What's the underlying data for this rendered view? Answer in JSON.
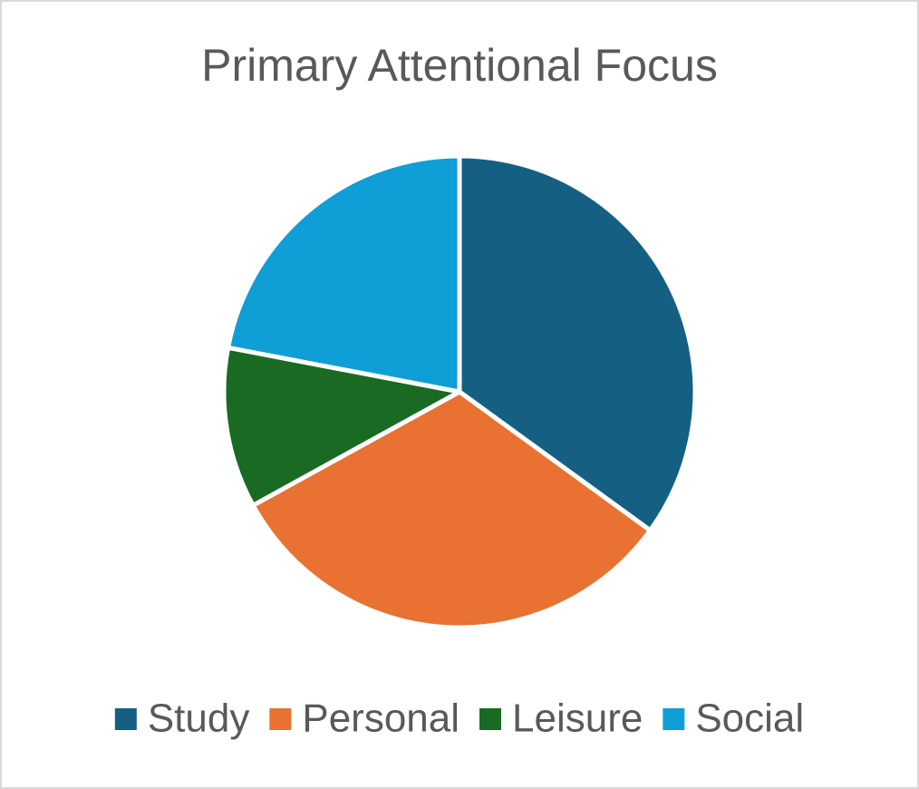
{
  "chart_data": {
    "type": "pie",
    "title": "Primary Attentional Focus",
    "categories": [
      "Study",
      "Personal",
      "Leisure",
      "Social"
    ],
    "values": [
      35,
      32,
      11,
      22
    ],
    "colors": [
      "#156082",
      "#e97132",
      "#196b24",
      "#0f9ed5"
    ],
    "legend": "bottom"
  }
}
